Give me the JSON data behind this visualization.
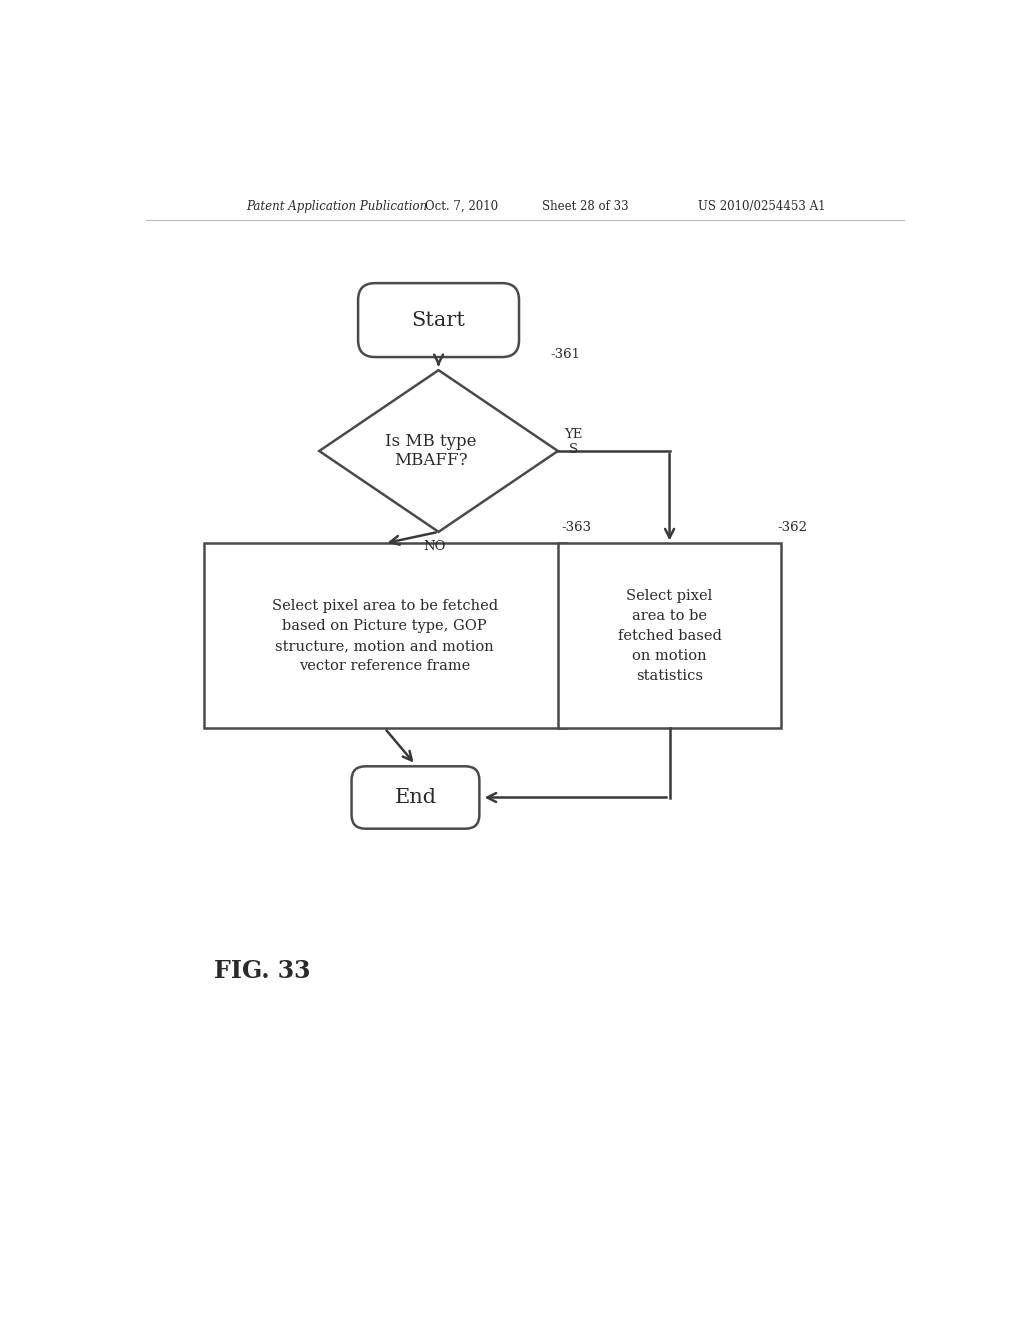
{
  "bg_color": "#ffffff",
  "header_text": "Patent Application Publication",
  "header_date": "Oct. 7, 2010",
  "header_sheet": "Sheet 28 of 33",
  "header_patent": "US 2010/0254453 A1",
  "fig_label": "FIG. 33",
  "start_label": "Start",
  "end_label": "End",
  "diamond_label": "Is MB type\nMBAFF?",
  "diamond_ref": "-361",
  "yes_label": "YE\nS",
  "no_label": "NO",
  "box_left_label": "Select pixel area to be fetched\nbased on Picture type, GOP\nstructure, motion and motion\nvector reference frame",
  "box_left_ref": "-363",
  "box_right_label": "Select pixel\narea to be\nfetched based\non motion\nstatistics",
  "box_right_ref": "-362",
  "line_color": "#3a3a3a",
  "text_color": "#2a2a2a",
  "shape_edge_color": "#4a4a4a",
  "arrow_color": "#3a3a3a"
}
